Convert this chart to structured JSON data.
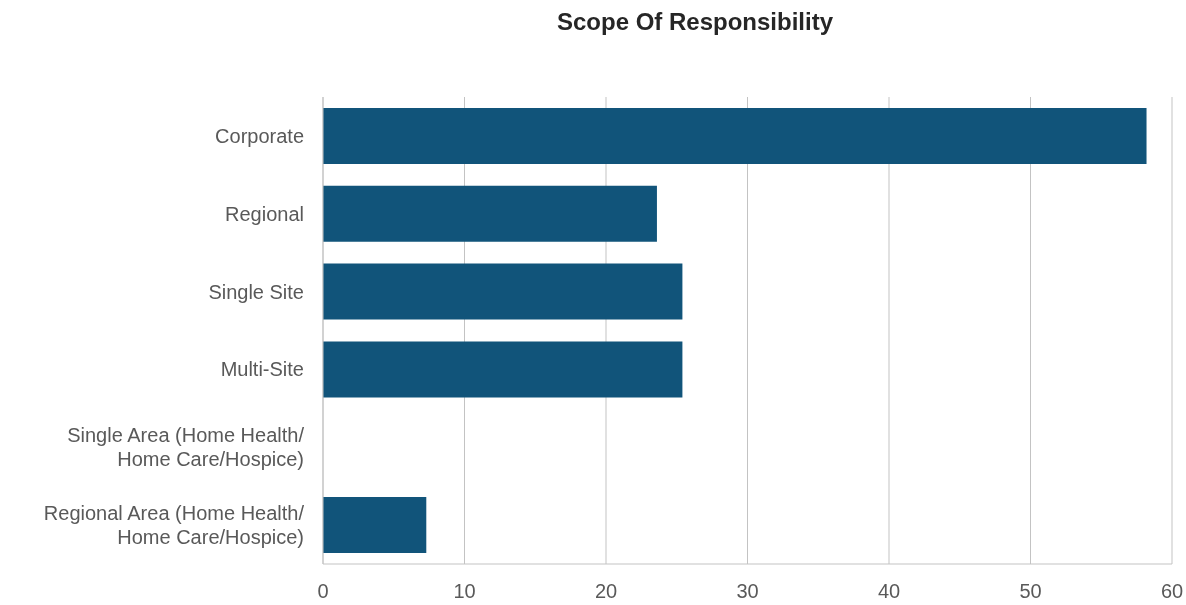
{
  "chart_data": {
    "type": "bar",
    "title": "Scope Of Responsibility",
    "orientation": "horizontal",
    "categories": [
      "Corporate",
      "Regional",
      "Single Site",
      "Multi-Site",
      "Single Area (Home Health/ Home Care/Hospice)",
      "Regional Area (Home Health/ Home Care/Hospice)"
    ],
    "values": [
      58.2,
      23.6,
      25.4,
      25.4,
      0,
      7.3
    ],
    "color": "#11547a",
    "xlim": [
      0,
      60
    ],
    "xticks": [
      0,
      10,
      20,
      30,
      40,
      50,
      60
    ],
    "grid": "x"
  }
}
